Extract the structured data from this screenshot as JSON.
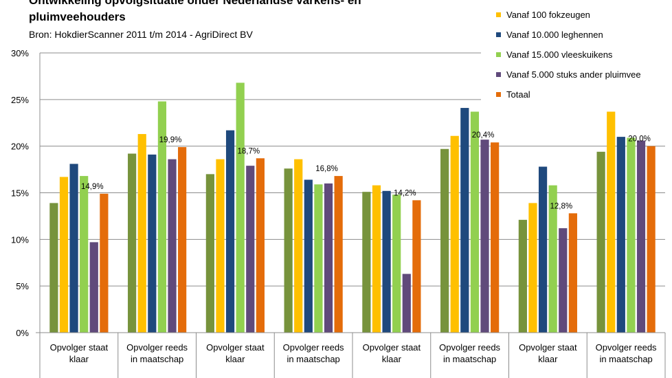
{
  "chart_data": {
    "type": "bar",
    "title_lines": [
      "Ontwikkeling opvolgsituatie onder Nederlandse varkens- en",
      "pluimveehouders"
    ],
    "subtitle": "Bron: HokdierScanner 2011 t/m 2014 - AgriDirect BV",
    "categories": [
      [
        "Opvolger staat",
        "klaar"
      ],
      [
        "Opvolger reeds",
        "in maatschap"
      ],
      [
        "Opvolger staat",
        "klaar"
      ],
      [
        "Opvolger reeds",
        "in maatschap"
      ],
      [
        "Opvolger staat",
        "klaar"
      ],
      [
        "Opvolger reeds",
        "in maatschap"
      ],
      [
        "Opvolger staat",
        "klaar"
      ],
      [
        "Opvolger reeds",
        "in maatschap"
      ]
    ],
    "series": [
      {
        "name": "",
        "color": "#77933C",
        "values": [
          13.9,
          19.2,
          17.0,
          17.6,
          15.1,
          19.7,
          12.1,
          19.4
        ]
      },
      {
        "name": "Vanaf 100 fokzeugen",
        "color": "#FFC000",
        "values": [
          16.7,
          21.3,
          18.6,
          18.6,
          15.8,
          21.1,
          13.9,
          23.7
        ]
      },
      {
        "name": "Vanaf 10.000 leghennen",
        "color": "#1F497D",
        "values": [
          18.1,
          19.1,
          21.7,
          16.4,
          15.2,
          24.1,
          17.8,
          21.0
        ]
      },
      {
        "name": "Vanaf 15.000 vleeskuikens",
        "color": "#92D050",
        "values": [
          16.8,
          24.8,
          26.8,
          15.9,
          14.8,
          23.7,
          15.8,
          20.9
        ]
      },
      {
        "name": "Vanaf 5.000 stuks ander pluimvee",
        "color": "#604A7B",
        "values": [
          9.7,
          18.6,
          17.9,
          16.0,
          6.3,
          20.7,
          11.2,
          20.6
        ]
      },
      {
        "name": "Totaal",
        "color": "#E46C0A",
        "values": [
          14.9,
          19.9,
          18.7,
          16.8,
          14.2,
          20.4,
          12.8,
          20.0
        ]
      }
    ],
    "data_labels": [
      "14,9%",
      "19,9%",
      "18,7%",
      "16,8%",
      "14,2%",
      "20,4%",
      "12,8%",
      "20,0%"
    ],
    "y_ticks": [
      "0%",
      "5%",
      "10%",
      "15%",
      "20%",
      "25%",
      "30%"
    ],
    "ylim": [
      0,
      30
    ],
    "grid": true,
    "legend_position": "top-right"
  }
}
